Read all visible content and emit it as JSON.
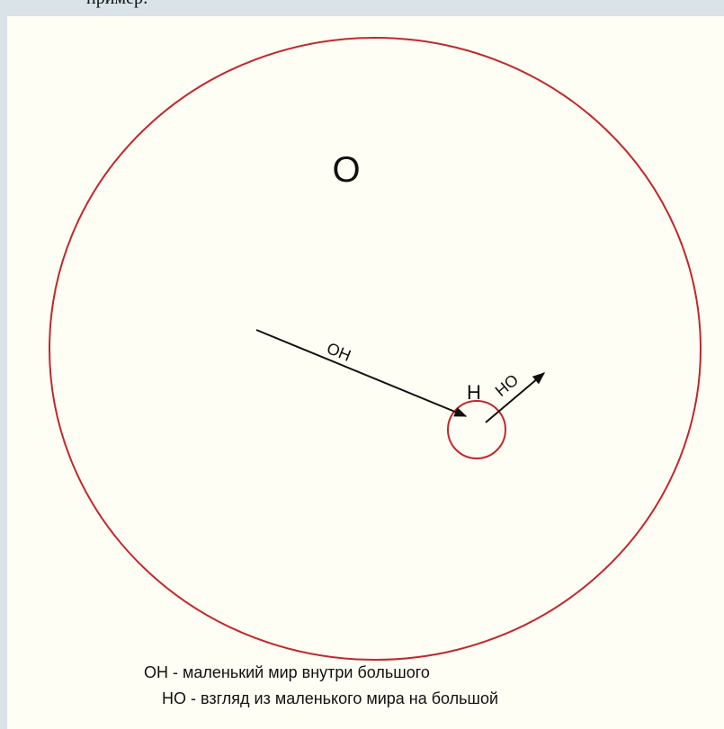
{
  "header": {
    "text": "пример:"
  },
  "diagram": {
    "center_label": "О",
    "point_label": "Н",
    "arrows": [
      {
        "label": "ОН"
      },
      {
        "label": "НО"
      }
    ],
    "legend": [
      "ОН - маленький мир внутри большого",
      "НО - взгляд из маленького мира на большой"
    ]
  }
}
